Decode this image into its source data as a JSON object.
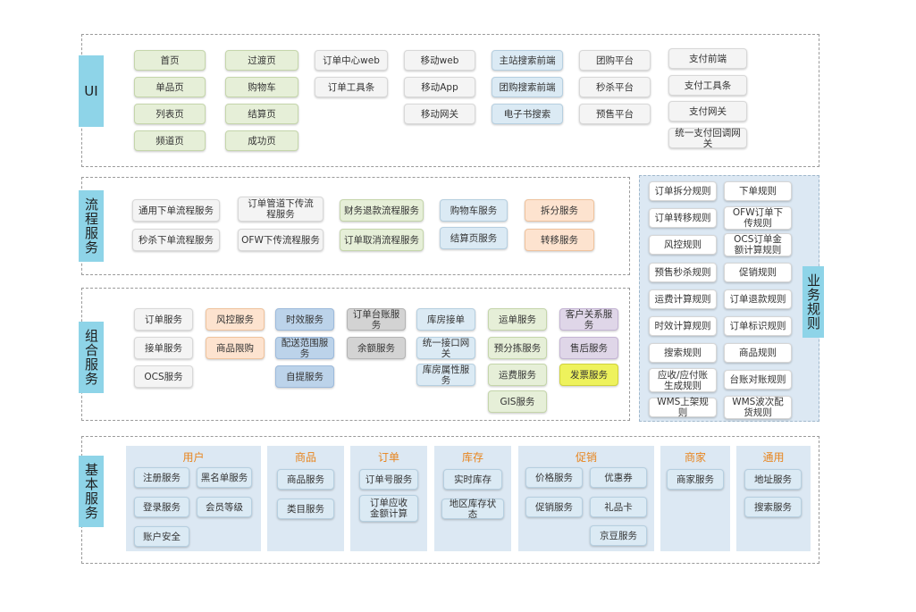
{
  "layers": {
    "ui": "UI",
    "flow": "流程服务",
    "combo": "组合服务",
    "basic": "基本服务",
    "rules": "业务规则"
  },
  "ui_boxes": [
    "首页",
    "单品页",
    "列表页",
    "频道页",
    "过渡页",
    "购物车",
    "结算页",
    "成功页",
    "订单中心web",
    "订单工具条",
    "移动web",
    "移动App",
    "移动网关",
    "主站搜索前端",
    "团购搜索前端",
    "电子书搜索",
    "团购平台",
    "秒杀平台",
    "预售平台",
    "支付前端",
    "支付工具条",
    "支付网关",
    "统一支付回调网关"
  ],
  "flow_boxes": [
    "通用下单流程服务",
    "秒杀下单流程服务",
    "订单管道下传流程服务",
    "OFW下传流程服务",
    "财务退款流程服务",
    "订单取消流程服务",
    "购物车服务",
    "结算页服务",
    "拆分服务",
    "转移服务"
  ],
  "combo_boxes": [
    "订单服务",
    "接单服务",
    "OCS服务",
    "风控服务",
    "商品限购",
    "时效服务",
    "配送范围服务",
    "自提服务",
    "订单台账服务",
    "余额服务",
    "库房接单",
    "统一接口网关",
    "库房属性服务",
    "运单服务",
    "预分拣服务",
    "运费服务",
    "GIS服务",
    "客户关系服务",
    "售后服务",
    "发票服务"
  ],
  "rules_boxes": [
    "订单拆分规则",
    "下单规则",
    "订单转移规则",
    "OFW订单下传规则",
    "风控规则",
    "OCS订单金额计算规则",
    "预售秒杀规则",
    "促销规则",
    "运费计算规则",
    "订单退款规则",
    "时效计算规则",
    "订单标识规则",
    "搜索规则",
    "商品规则",
    "应收/应付账生成规则",
    "台账对账规则",
    "WMS上架规则",
    "WMS波次配货规则"
  ],
  "basic": {
    "user": {
      "title": "用户",
      "items": [
        "注册服务",
        "黑名单服务",
        "登录服务",
        "会员等级",
        "账户安全"
      ]
    },
    "product": {
      "title": "商品",
      "items": [
        "商品服务",
        "类目服务"
      ]
    },
    "order": {
      "title": "订单",
      "items": [
        "订单号服务",
        "订单应收金额计算"
      ]
    },
    "stock": {
      "title": "库存",
      "items": [
        "实时库存",
        "地区库存状态"
      ]
    },
    "promo": {
      "title": "促销",
      "items": [
        "价格服务",
        "优惠券",
        "促销服务",
        "礼品卡",
        "京豆服务"
      ]
    },
    "merchant": {
      "title": "商家",
      "items": [
        "商家服务"
      ]
    },
    "common": {
      "title": "通用",
      "items": [
        "地址服务",
        "搜索服务"
      ]
    }
  }
}
